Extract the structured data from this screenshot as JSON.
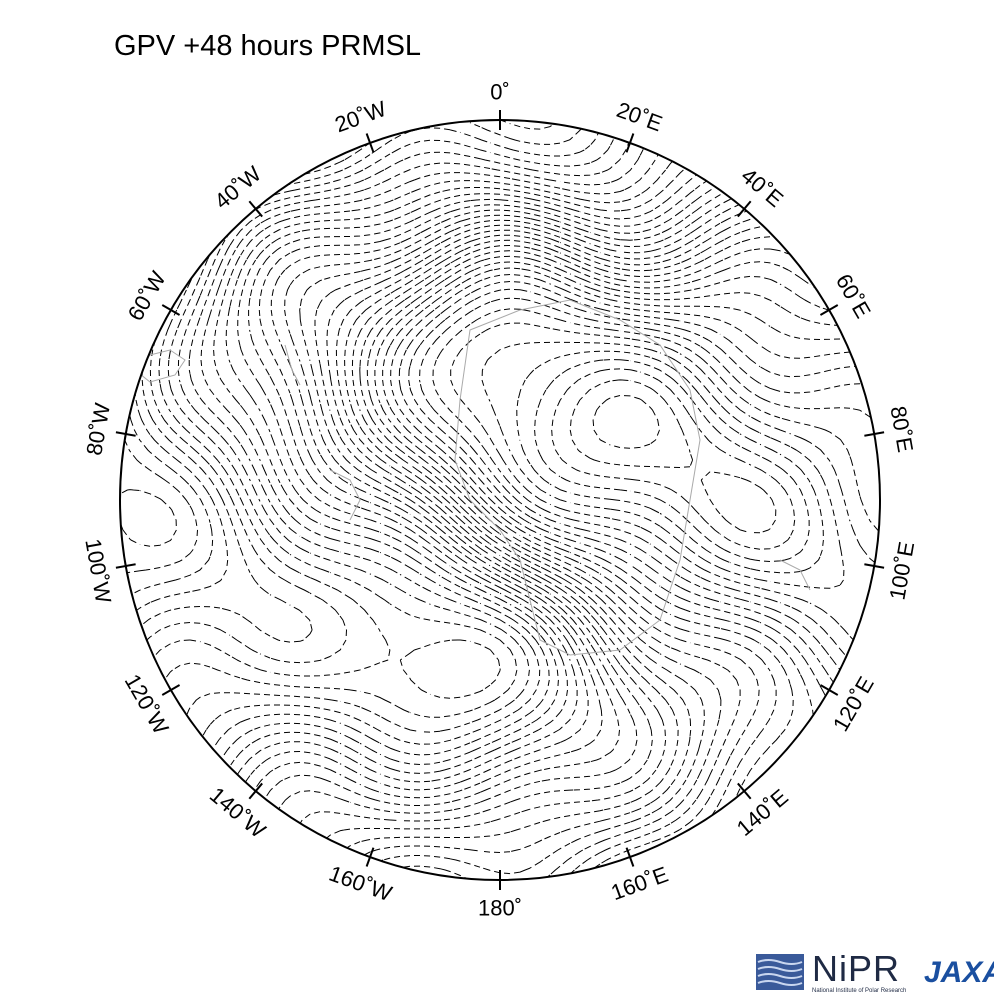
{
  "title": "GPV +48 hours PRMSL",
  "longitude_labels": [
    {
      "text": "0˚",
      "lon": 0
    },
    {
      "text": "20˚E",
      "lon": 20
    },
    {
      "text": "40˚E",
      "lon": 40
    },
    {
      "text": "60˚E",
      "lon": 60
    },
    {
      "text": "80˚E",
      "lon": 80
    },
    {
      "text": "100˚E",
      "lon": 100
    },
    {
      "text": "120˚E",
      "lon": 120
    },
    {
      "text": "140˚E",
      "lon": 140
    },
    {
      "text": "160˚E",
      "lon": 160
    },
    {
      "text": "180˚",
      "lon": 180
    },
    {
      "text": "160˚W",
      "lon": -160
    },
    {
      "text": "140˚W",
      "lon": -140
    },
    {
      "text": "120˚W",
      "lon": -120
    },
    {
      "text": "100˚W",
      "lon": -100
    },
    {
      "text": "80˚W",
      "lon": -80
    },
    {
      "text": "60˚W",
      "lon": -60
    },
    {
      "text": "40˚W",
      "lon": -40
    },
    {
      "text": "20˚W",
      "lon": -20
    }
  ],
  "logos": {
    "nipr": "NiPR",
    "nipr_sub": "National Institute of Polar Research",
    "jaxa": "JAXA"
  },
  "colors": {
    "contour": "#000000",
    "coastline": "#aaaaaa",
    "frame": "#000000",
    "nipr_blue": "#3a5a9a",
    "jaxa_blue": "#1a4fa0"
  }
}
